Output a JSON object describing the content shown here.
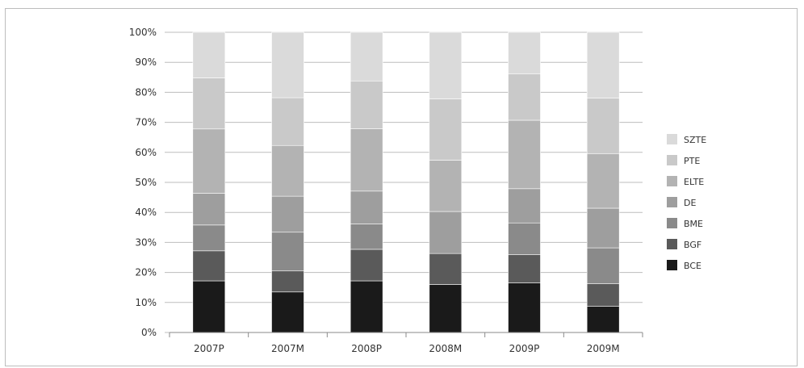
{
  "chart_data": {
    "type": "bar",
    "stacked": true,
    "percent": true,
    "title": "",
    "xlabel": "",
    "ylabel": "",
    "ylim": [
      0,
      100
    ],
    "yticks": [
      "0%",
      "10%",
      "20%",
      "30%",
      "40%",
      "50%",
      "60%",
      "70%",
      "80%",
      "90%",
      "100%"
    ],
    "grid": true,
    "legend_position": "right",
    "categories": [
      "2007P",
      "2007M",
      "2008P",
      "2008M",
      "2009P",
      "2009M"
    ],
    "series": [
      {
        "name": "BCE",
        "color": "#1a1a1a",
        "values": [
          17.2,
          13.5,
          17.2,
          16.0,
          16.5,
          8.7
        ]
      },
      {
        "name": "BGF",
        "color": "#5a5a5a",
        "values": [
          10.0,
          7.0,
          10.5,
          10.3,
          9.4,
          7.6
        ]
      },
      {
        "name": "BME",
        "color": "#8a8a8a",
        "values": [
          8.6,
          12.9,
          8.5,
          0.0,
          10.6,
          11.9
        ]
      },
      {
        "name": "DE",
        "color": "#9e9e9e",
        "values": [
          10.6,
          12.0,
          10.9,
          14.0,
          11.4,
          13.2
        ]
      },
      {
        "name": "ELTE",
        "color": "#b3b3b3",
        "values": [
          21.4,
          16.9,
          20.8,
          17.1,
          22.8,
          18.2
        ]
      },
      {
        "name": "PTE",
        "color": "#c9c9c9",
        "values": [
          17.0,
          15.9,
          15.9,
          20.4,
          15.5,
          18.5
        ]
      },
      {
        "name": "SZTE",
        "color": "#dadada",
        "values": [
          15.2,
          21.8,
          16.2,
          22.2,
          13.8,
          21.9
        ]
      }
    ]
  }
}
